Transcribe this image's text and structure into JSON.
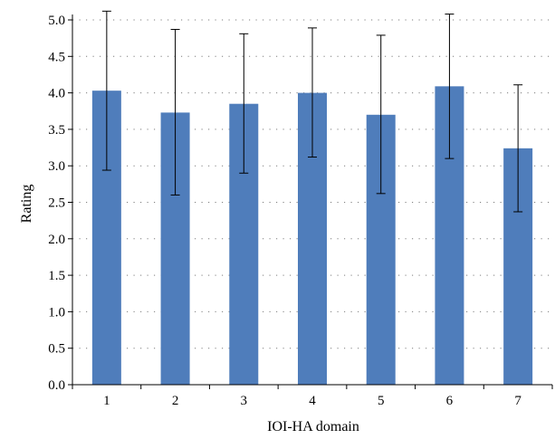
{
  "chart_data": {
    "type": "bar",
    "xlabel": "IOI-HA domain",
    "ylabel": "Rating",
    "categories": [
      "1",
      "2",
      "3",
      "4",
      "5",
      "6",
      "7"
    ],
    "values": [
      4.03,
      3.73,
      3.85,
      4.0,
      3.7,
      4.09,
      3.24
    ],
    "error_low": [
      2.94,
      2.6,
      2.9,
      3.12,
      2.62,
      3.1,
      2.37
    ],
    "error_high": [
      5.12,
      4.87,
      4.81,
      4.89,
      4.79,
      5.08,
      4.11
    ],
    "ylim": [
      0.0,
      5.0
    ],
    "yticks": [
      "0.0",
      "0.5",
      "1.0",
      "1.5",
      "2.0",
      "2.5",
      "3.0",
      "3.5",
      "4.0",
      "4.5",
      "5.0"
    ],
    "grid": "dotted-horizontal",
    "colors": {
      "bar": "#4f7dbb",
      "error": "#000000",
      "grid": "#7f7f7f",
      "axis": "#000000"
    }
  }
}
